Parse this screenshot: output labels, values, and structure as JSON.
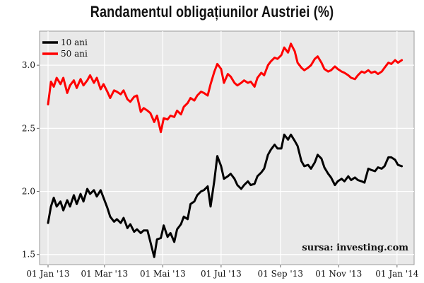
{
  "chart_data": {
    "type": "line",
    "title": "Randamentul obligațiunilor Austriei (%)",
    "xlabel": "",
    "ylabel": "",
    "x_range": [
      "2013-01-01",
      "2014-01-10"
    ],
    "ylim": [
      1.42,
      3.27
    ],
    "y_ticks": [
      1.5,
      2.0,
      2.5,
      3.0
    ],
    "y_tick_labels": [
      "1.5",
      "2.0",
      "2.5",
      "3.0"
    ],
    "x_ticks": [
      "2013-01-01",
      "2013-03-01",
      "2013-05-01",
      "2013-07-01",
      "2013-09-01",
      "2013-11-01",
      "2014-01-01"
    ],
    "x_tick_labels": [
      "01 Jan '13",
      "01 Mar '13",
      "01 Mai '13",
      "01 Jul '13",
      "01 Sep '13",
      "01 Nov '13",
      "01 Jan '14"
    ],
    "grid": true,
    "legend_position": "top-left",
    "source_note": "sursa: investing.com",
    "series": [
      {
        "name": "10 ani",
        "color": "#000000",
        "points": [
          [
            "2013-01-01",
            1.75
          ],
          [
            "2013-01-04",
            1.88
          ],
          [
            "2013-01-07",
            1.95
          ],
          [
            "2013-01-10",
            1.88
          ],
          [
            "2013-01-14",
            1.92
          ],
          [
            "2013-01-17",
            1.85
          ],
          [
            "2013-01-21",
            1.93
          ],
          [
            "2013-01-24",
            1.88
          ],
          [
            "2013-01-28",
            1.97
          ],
          [
            "2013-01-31",
            1.9
          ],
          [
            "2013-02-04",
            1.98
          ],
          [
            "2013-02-07",
            1.92
          ],
          [
            "2013-02-11",
            2.02
          ],
          [
            "2013-02-14",
            1.98
          ],
          [
            "2013-02-18",
            2.01
          ],
          [
            "2013-02-21",
            1.96
          ],
          [
            "2013-02-25",
            2.01
          ],
          [
            "2013-02-28",
            1.95
          ],
          [
            "2013-03-04",
            1.87
          ],
          [
            "2013-03-07",
            1.8
          ],
          [
            "2013-03-11",
            1.76
          ],
          [
            "2013-03-14",
            1.78
          ],
          [
            "2013-03-18",
            1.75
          ],
          [
            "2013-03-21",
            1.79
          ],
          [
            "2013-03-25",
            1.71
          ],
          [
            "2013-03-28",
            1.74
          ],
          [
            "2013-04-01",
            1.68
          ],
          [
            "2013-04-04",
            1.7
          ],
          [
            "2013-04-08",
            1.67
          ],
          [
            "2013-04-11",
            1.69
          ],
          [
            "2013-04-15",
            1.69
          ],
          [
            "2013-04-18",
            1.6
          ],
          [
            "2013-04-22",
            1.48
          ],
          [
            "2013-04-25",
            1.62
          ],
          [
            "2013-04-29",
            1.63
          ],
          [
            "2013-05-02",
            1.73
          ],
          [
            "2013-05-06",
            1.64
          ],
          [
            "2013-05-09",
            1.67
          ],
          [
            "2013-05-13",
            1.6
          ],
          [
            "2013-05-16",
            1.7
          ],
          [
            "2013-05-20",
            1.74
          ],
          [
            "2013-05-23",
            1.8
          ],
          [
            "2013-05-27",
            1.78
          ],
          [
            "2013-05-30",
            1.9
          ],
          [
            "2013-06-03",
            1.92
          ],
          [
            "2013-06-06",
            1.97
          ],
          [
            "2013-06-10",
            2.0
          ],
          [
            "2013-06-13",
            2.01
          ],
          [
            "2013-06-17",
            2.04
          ],
          [
            "2013-06-20",
            1.88
          ],
          [
            "2013-06-24",
            2.09
          ],
          [
            "2013-06-27",
            2.28
          ],
          [
            "2013-07-01",
            2.2
          ],
          [
            "2013-07-04",
            2.1
          ],
          [
            "2013-07-08",
            2.12
          ],
          [
            "2013-07-11",
            2.14
          ],
          [
            "2013-07-15",
            2.1
          ],
          [
            "2013-07-18",
            2.05
          ],
          [
            "2013-07-22",
            2.02
          ],
          [
            "2013-07-25",
            2.05
          ],
          [
            "2013-07-29",
            2.08
          ],
          [
            "2013-08-01",
            2.05
          ],
          [
            "2013-08-05",
            2.06
          ],
          [
            "2013-08-08",
            2.12
          ],
          [
            "2013-08-12",
            2.15
          ],
          [
            "2013-08-15",
            2.18
          ],
          [
            "2013-08-19",
            2.29
          ],
          [
            "2013-08-22",
            2.33
          ],
          [
            "2013-08-26",
            2.37
          ],
          [
            "2013-08-29",
            2.34
          ],
          [
            "2013-09-02",
            2.34
          ],
          [
            "2013-09-05",
            2.45
          ],
          [
            "2013-09-09",
            2.41
          ],
          [
            "2013-09-12",
            2.45
          ],
          [
            "2013-09-16",
            2.4
          ],
          [
            "2013-09-19",
            2.36
          ],
          [
            "2013-09-23",
            2.24
          ],
          [
            "2013-09-26",
            2.2
          ],
          [
            "2013-09-30",
            2.21
          ],
          [
            "2013-10-03",
            2.18
          ],
          [
            "2013-10-07",
            2.23
          ],
          [
            "2013-10-10",
            2.29
          ],
          [
            "2013-10-14",
            2.26
          ],
          [
            "2013-10-17",
            2.19
          ],
          [
            "2013-10-21",
            2.14
          ],
          [
            "2013-10-24",
            2.11
          ],
          [
            "2013-10-28",
            2.05
          ],
          [
            "2013-10-31",
            2.08
          ],
          [
            "2013-11-04",
            2.1
          ],
          [
            "2013-11-07",
            2.08
          ],
          [
            "2013-11-11",
            2.12
          ],
          [
            "2013-11-14",
            2.09
          ],
          [
            "2013-11-18",
            2.11
          ],
          [
            "2013-11-21",
            2.09
          ],
          [
            "2013-11-25",
            2.08
          ],
          [
            "2013-11-28",
            2.07
          ],
          [
            "2013-12-02",
            2.18
          ],
          [
            "2013-12-05",
            2.17
          ],
          [
            "2013-12-09",
            2.16
          ],
          [
            "2013-12-12",
            2.19
          ],
          [
            "2013-12-16",
            2.18
          ],
          [
            "2013-12-19",
            2.2
          ],
          [
            "2013-12-23",
            2.27
          ],
          [
            "2013-12-26",
            2.27
          ],
          [
            "2013-12-30",
            2.25
          ],
          [
            "2014-01-02",
            2.21
          ],
          [
            "2014-01-06",
            2.2
          ]
        ]
      },
      {
        "name": "50 ani",
        "color": "#ff0000",
        "points": [
          [
            "2013-01-01",
            2.69
          ],
          [
            "2013-01-04",
            2.87
          ],
          [
            "2013-01-07",
            2.83
          ],
          [
            "2013-01-10",
            2.9
          ],
          [
            "2013-01-14",
            2.85
          ],
          [
            "2013-01-17",
            2.9
          ],
          [
            "2013-01-21",
            2.78
          ],
          [
            "2013-01-24",
            2.84
          ],
          [
            "2013-01-28",
            2.88
          ],
          [
            "2013-01-31",
            2.82
          ],
          [
            "2013-02-04",
            2.89
          ],
          [
            "2013-02-07",
            2.84
          ],
          [
            "2013-02-11",
            2.88
          ],
          [
            "2013-02-14",
            2.92
          ],
          [
            "2013-02-18",
            2.86
          ],
          [
            "2013-02-21",
            2.9
          ],
          [
            "2013-02-25",
            2.81
          ],
          [
            "2013-02-28",
            2.85
          ],
          [
            "2013-03-04",
            2.79
          ],
          [
            "2013-03-07",
            2.74
          ],
          [
            "2013-03-11",
            2.8
          ],
          [
            "2013-03-14",
            2.79
          ],
          [
            "2013-03-18",
            2.77
          ],
          [
            "2013-03-21",
            2.8
          ],
          [
            "2013-03-25",
            2.73
          ],
          [
            "2013-03-28",
            2.71
          ],
          [
            "2013-04-01",
            2.75
          ],
          [
            "2013-04-04",
            2.76
          ],
          [
            "2013-04-08",
            2.63
          ],
          [
            "2013-04-11",
            2.66
          ],
          [
            "2013-04-15",
            2.64
          ],
          [
            "2013-04-18",
            2.62
          ],
          [
            "2013-04-22",
            2.55
          ],
          [
            "2013-04-25",
            2.6
          ],
          [
            "2013-04-29",
            2.47
          ],
          [
            "2013-05-02",
            2.58
          ],
          [
            "2013-05-06",
            2.57
          ],
          [
            "2013-05-09",
            2.6
          ],
          [
            "2013-05-13",
            2.59
          ],
          [
            "2013-05-16",
            2.64
          ],
          [
            "2013-05-20",
            2.61
          ],
          [
            "2013-05-23",
            2.67
          ],
          [
            "2013-05-27",
            2.7
          ],
          [
            "2013-05-30",
            2.74
          ],
          [
            "2013-06-03",
            2.72
          ],
          [
            "2013-06-06",
            2.76
          ],
          [
            "2013-06-10",
            2.79
          ],
          [
            "2013-06-13",
            2.78
          ],
          [
            "2013-06-17",
            2.76
          ],
          [
            "2013-06-20",
            2.85
          ],
          [
            "2013-06-24",
            2.95
          ],
          [
            "2013-06-27",
            3.01
          ],
          [
            "2013-07-01",
            2.97
          ],
          [
            "2013-07-04",
            2.86
          ],
          [
            "2013-07-08",
            2.93
          ],
          [
            "2013-07-11",
            2.91
          ],
          [
            "2013-07-15",
            2.86
          ],
          [
            "2013-07-18",
            2.84
          ],
          [
            "2013-07-22",
            2.86
          ],
          [
            "2013-07-25",
            2.88
          ],
          [
            "2013-07-29",
            2.86
          ],
          [
            "2013-08-01",
            2.87
          ],
          [
            "2013-08-05",
            2.83
          ],
          [
            "2013-08-08",
            2.9
          ],
          [
            "2013-08-12",
            2.94
          ],
          [
            "2013-08-15",
            2.92
          ],
          [
            "2013-08-19",
            3.0
          ],
          [
            "2013-08-22",
            3.03
          ],
          [
            "2013-08-26",
            3.06
          ],
          [
            "2013-08-29",
            3.05
          ],
          [
            "2013-09-02",
            3.08
          ],
          [
            "2013-09-05",
            3.14
          ],
          [
            "2013-09-09",
            3.1
          ],
          [
            "2013-09-12",
            3.17
          ],
          [
            "2013-09-16",
            3.11
          ],
          [
            "2013-09-19",
            3.02
          ],
          [
            "2013-09-23",
            2.98
          ],
          [
            "2013-09-26",
            2.96
          ],
          [
            "2013-09-30",
            2.98
          ],
          [
            "2013-10-03",
            3.0
          ],
          [
            "2013-10-07",
            3.05
          ],
          [
            "2013-10-10",
            3.07
          ],
          [
            "2013-10-14",
            3.02
          ],
          [
            "2013-10-17",
            2.97
          ],
          [
            "2013-10-21",
            2.95
          ],
          [
            "2013-10-24",
            2.96
          ],
          [
            "2013-10-28",
            2.99
          ],
          [
            "2013-10-31",
            2.97
          ],
          [
            "2013-11-04",
            2.95
          ],
          [
            "2013-11-07",
            2.94
          ],
          [
            "2013-11-11",
            2.92
          ],
          [
            "2013-11-14",
            2.9
          ],
          [
            "2013-11-18",
            2.89
          ],
          [
            "2013-11-21",
            2.92
          ],
          [
            "2013-11-25",
            2.95
          ],
          [
            "2013-11-28",
            2.94
          ],
          [
            "2013-12-02",
            2.96
          ],
          [
            "2013-12-05",
            2.94
          ],
          [
            "2013-12-09",
            2.95
          ],
          [
            "2013-12-12",
            2.93
          ],
          [
            "2013-12-16",
            2.95
          ],
          [
            "2013-12-19",
            2.98
          ],
          [
            "2013-12-23",
            3.02
          ],
          [
            "2013-12-26",
            3.01
          ],
          [
            "2013-12-30",
            3.04
          ],
          [
            "2014-01-02",
            3.02
          ],
          [
            "2014-01-06",
            3.04
          ]
        ]
      }
    ]
  }
}
